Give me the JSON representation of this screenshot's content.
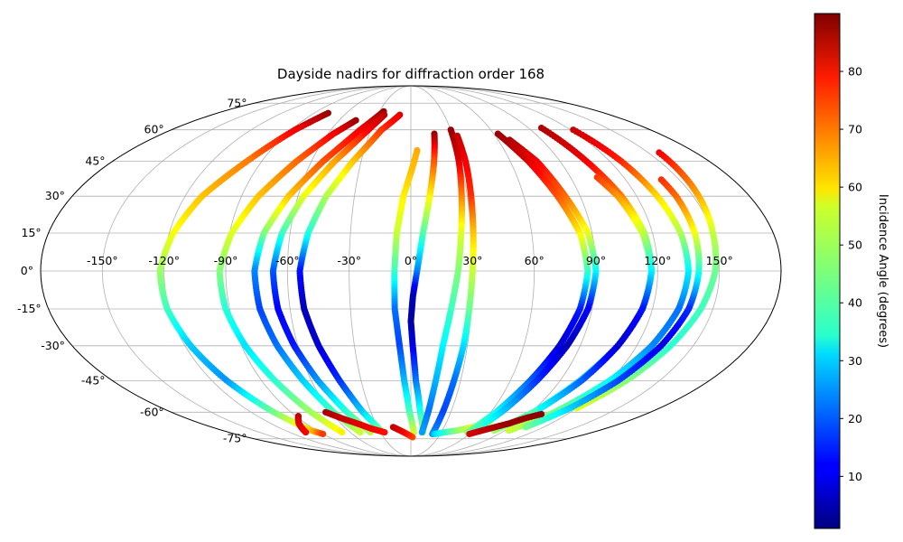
{
  "chart_data": {
    "type": "scatter",
    "projection": "mollweide",
    "title": "Dayside nadirs for diffraction order 168",
    "longitude_ticks": [
      "-150°",
      "-120°",
      "-90°",
      "-60°",
      "-30°",
      "0°",
      "30°",
      "60°",
      "90°",
      "120°",
      "150°"
    ],
    "longitude_values": [
      -150,
      -120,
      -90,
      -60,
      -30,
      0,
      30,
      60,
      90,
      120,
      150
    ],
    "latitude_ticks": [
      "75°",
      "60°",
      "45°",
      "30°",
      "15°",
      "0°",
      "-15°",
      "-30°",
      "-45°",
      "-60°",
      "-75°"
    ],
    "latitude_values": [
      75,
      60,
      45,
      30,
      15,
      0,
      -15,
      -30,
      -45,
      -60,
      -75
    ],
    "grid": true,
    "colormap": "jet",
    "colorbar": {
      "label": "Incidence Angle (degrees)",
      "range": [
        1,
        90
      ],
      "ticks": [
        "10",
        "20",
        "30",
        "40",
        "50",
        "60",
        "70",
        "80"
      ],
      "tick_values": [
        10,
        20,
        30,
        40,
        50,
        60,
        70,
        80
      ]
    },
    "series": [
      {
        "points": [
          [
            -77,
            69,
            88
          ],
          [
            -87,
            60,
            80
          ],
          [
            -99,
            45,
            68
          ],
          [
            -111,
            30,
            62
          ],
          [
            -118,
            15,
            56
          ],
          [
            -122,
            0,
            48
          ],
          [
            -121,
            -15,
            40
          ],
          [
            -117,
            -30,
            30
          ],
          [
            -111,
            -45,
            25
          ],
          [
            -103,
            -60,
            44
          ],
          [
            -95,
            -70,
            62
          ],
          [
            -90,
            -72,
            74
          ]
        ]
      },
      {
        "points": [
          [
            -88,
            -62,
            85
          ],
          [
            -96,
            -66,
            82
          ],
          [
            -104,
            -71,
            80
          ]
        ]
      },
      {
        "points": [
          [
            -46,
            65,
            88
          ],
          [
            -56,
            58,
            80
          ],
          [
            -69,
            45,
            70
          ],
          [
            -81,
            30,
            62
          ],
          [
            -89,
            15,
            54
          ],
          [
            -93,
            0,
            46
          ],
          [
            -92,
            -15,
            38
          ],
          [
            -88,
            -30,
            32
          ],
          [
            -82,
            -45,
            38
          ],
          [
            -75,
            -60,
            48
          ],
          [
            -68,
            -71,
            58
          ]
        ]
      },
      {
        "points": [
          [
            -26,
            70,
            88
          ],
          [
            -38,
            60,
            80
          ],
          [
            -53,
            45,
            72
          ],
          [
            -65,
            30,
            62
          ],
          [
            -73,
            15,
            46
          ],
          [
            -76,
            0,
            24
          ],
          [
            -75,
            -15,
            18
          ],
          [
            -71,
            -30,
            22
          ],
          [
            -65,
            -45,
            30
          ],
          [
            -58,
            -60,
            40
          ],
          [
            -50,
            -71,
            52
          ]
        ]
      },
      {
        "points": [
          [
            -24,
            68,
            85
          ],
          [
            -32,
            60,
            80
          ],
          [
            -46,
            45,
            65
          ],
          [
            -57,
            30,
            55
          ],
          [
            -64,
            15,
            40
          ],
          [
            -67,
            0,
            20
          ],
          [
            -66,
            -15,
            12
          ],
          [
            -62,
            -30,
            14
          ],
          [
            -56,
            -45,
            25
          ],
          [
            -48,
            -60,
            38
          ],
          [
            -40,
            -71,
            50
          ]
        ]
      },
      {
        "points": [
          [
            -10,
            68,
            82
          ],
          [
            -22,
            60,
            75
          ],
          [
            -35,
            45,
            62
          ],
          [
            -45,
            30,
            50
          ],
          [
            -51,
            15,
            38
          ],
          [
            -54,
            0,
            14
          ],
          [
            -53,
            -15,
            6
          ],
          [
            -49,
            -30,
            8
          ],
          [
            -43,
            -45,
            16
          ],
          [
            -36,
            -60,
            30
          ],
          [
            -28,
            -71,
            45
          ]
        ]
      },
      {
        "points": [
          [
            -64,
            -60,
            86
          ],
          [
            -56,
            -63,
            84
          ],
          [
            -46,
            -66,
            82
          ],
          [
            -36,
            -69,
            80
          ],
          [
            -26,
            -71,
            78
          ]
        ]
      },
      {
        "points": [
          [
            4,
            50,
            64
          ],
          [
            0,
            40,
            62
          ],
          [
            -4,
            30,
            58
          ],
          [
            -7,
            15,
            52
          ],
          [
            -8,
            0,
            40
          ],
          [
            -8,
            -15,
            22
          ],
          [
            -6,
            -30,
            18
          ],
          [
            -4,
            -45,
            28
          ],
          [
            -1,
            -60,
            40
          ],
          [
            3,
            -71,
            52
          ]
        ]
      },
      {
        "points": [
          [
            2,
            -74,
            72
          ],
          [
            -4,
            -72,
            76
          ],
          [
            -10,
            -70,
            80
          ],
          [
            -16,
            -68,
            84
          ]
        ]
      },
      {
        "points": [
          [
            17,
            58,
            88
          ],
          [
            14,
            45,
            72
          ],
          [
            10,
            30,
            58
          ],
          [
            6,
            15,
            42
          ],
          [
            3,
            0,
            24
          ],
          [
            1,
            -10,
            6
          ],
          [
            0,
            -20,
            4
          ],
          [
            1,
            -30,
            10
          ],
          [
            3,
            -45,
            22
          ],
          [
            7,
            -60,
            36
          ],
          [
            12,
            -71,
            50
          ]
        ]
      },
      {
        "points": [
          [
            30,
            60,
            88
          ],
          [
            29,
            45,
            82
          ],
          [
            27,
            30,
            68
          ],
          [
            25,
            15,
            54
          ],
          [
            23,
            0,
            46
          ],
          [
            20,
            -15,
            40
          ],
          [
            17,
            -30,
            34
          ],
          [
            15,
            -45,
            28
          ],
          [
            13,
            -60,
            22
          ],
          [
            11,
            -71,
            26
          ]
        ]
      },
      {
        "points": [
          [
            33,
            57,
            84
          ],
          [
            33,
            45,
            80
          ],
          [
            32,
            30,
            75
          ],
          [
            31,
            15,
            62
          ],
          [
            30,
            0,
            52
          ],
          [
            29,
            -15,
            44
          ],
          [
            28,
            -30,
            32
          ],
          [
            26,
            -45,
            22
          ],
          [
            24,
            -60,
            18
          ],
          [
            22,
            -72,
            24
          ]
        ]
      },
      {
        "points": [
          [
            24,
            -72,
            30
          ],
          [
            34,
            -71,
            38
          ],
          [
            44,
            -70,
            46
          ],
          [
            56,
            -68,
            54
          ],
          [
            66,
            -65,
            56
          ]
        ]
      },
      {
        "points": [
          [
            63,
            58,
            88
          ],
          [
            71,
            45,
            82
          ],
          [
            78,
            30,
            72
          ],
          [
            84,
            15,
            58
          ],
          [
            86,
            0,
            40
          ],
          [
            84,
            -15,
            15
          ],
          [
            79,
            -30,
            8
          ],
          [
            72,
            -45,
            20
          ],
          [
            64,
            -60,
            34
          ],
          [
            56,
            -71,
            45
          ]
        ]
      },
      {
        "points": [
          [
            68,
            55,
            86
          ],
          [
            76,
            45,
            80
          ],
          [
            82,
            30,
            70
          ],
          [
            88,
            15,
            55
          ],
          [
            90,
            0,
            35
          ],
          [
            88,
            -15,
            12
          ],
          [
            83,
            -30,
            6
          ],
          [
            76,
            -45,
            16
          ],
          [
            68,
            -60,
            30
          ],
          [
            60,
            -71,
            42
          ]
        ]
      },
      {
        "points": [
          [
            100,
            61,
            86
          ],
          [
            106,
            45,
            80
          ],
          [
            112,
            30,
            68
          ],
          [
            116,
            15,
            50
          ],
          [
            117,
            0,
            30
          ],
          [
            115,
            -15,
            18
          ],
          [
            110,
            -30,
            22
          ],
          [
            102,
            -45,
            30
          ],
          [
            92,
            -60,
            40
          ],
          [
            80,
            -70,
            48
          ]
        ]
      },
      {
        "points": [
          [
            122,
            60,
            84
          ],
          [
            127,
            45,
            76
          ],
          [
            131,
            30,
            60
          ],
          [
            134,
            15,
            50
          ],
          [
            135,
            0,
            34
          ],
          [
            133,
            -15,
            22
          ],
          [
            128,
            -30,
            24
          ],
          [
            120,
            -45,
            34
          ],
          [
            108,
            -60,
            44
          ],
          [
            94,
            -70,
            52
          ]
        ]
      },
      {
        "points": [
          [
            157,
            49,
            80
          ],
          [
            155,
            40,
            72
          ],
          [
            153,
            30,
            64
          ],
          [
            150,
            15,
            52
          ],
          [
            148,
            0,
            44
          ],
          [
            144,
            -15,
            40
          ],
          [
            138,
            -30,
            38
          ],
          [
            130,
            -45,
            46
          ],
          [
            120,
            -58,
            54
          ]
        ]
      },
      {
        "points": [
          [
            140,
            37,
            75
          ],
          [
            141,
            30,
            70
          ],
          [
            141,
            15,
            56
          ],
          [
            140,
            0,
            38
          ],
          [
            138,
            -15,
            16
          ],
          [
            133,
            -30,
            10
          ],
          [
            125,
            -45,
            18
          ],
          [
            115,
            -58,
            30
          ],
          [
            104,
            -68,
            44
          ]
        ]
      },
      {
        "points": [
          [
            105,
            38,
            74
          ],
          [
            110,
            30,
            66
          ],
          [
            115,
            15,
            52
          ],
          [
            117,
            0,
            34
          ],
          [
            115,
            -15,
            14
          ],
          [
            110,
            -30,
            8
          ],
          [
            103,
            -45,
            20
          ],
          [
            94,
            -58,
            34
          ]
        ]
      },
      {
        "points": [
          [
            60,
            -72,
            82
          ],
          [
            68,
            -70,
            84
          ],
          [
            76,
            -68,
            86
          ],
          [
            84,
            -66,
            88
          ],
          [
            92,
            -63,
            88
          ],
          [
            100,
            -61,
            89
          ]
        ]
      }
    ]
  }
}
